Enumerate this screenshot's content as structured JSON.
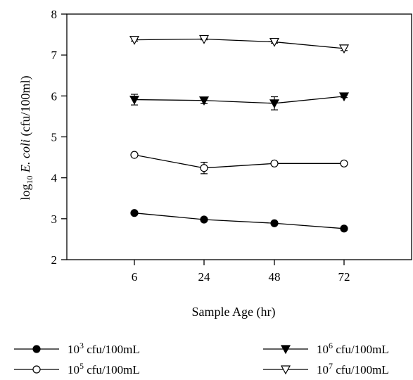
{
  "chart_data": {
    "type": "line",
    "title": "",
    "xlabel": "Sample Age (hr)",
    "ylabel": {
      "prefix": "log",
      "subscript": "10",
      "italic": "E. coli",
      "suffix": "(cfu/100ml)"
    },
    "categories": [
      "6",
      "24",
      "48",
      "72"
    ],
    "ylim": [
      2,
      8
    ],
    "yticks": [
      "2",
      "3",
      "4",
      "5",
      "6",
      "7",
      "8"
    ],
    "grid": false,
    "legend_position": "bottom",
    "series": [
      {
        "name": "10^3 cfu/100mL",
        "name_base": "10",
        "name_exp": "3",
        "name_unit": "cfu/100mL",
        "marker": "filled-circle",
        "values": [
          3.14,
          2.98,
          2.89,
          2.76
        ],
        "error": [
          0.0,
          0.0,
          0.0,
          0.0
        ]
      },
      {
        "name": "10^5 cfu/100mL",
        "name_base": "10",
        "name_exp": "5",
        "name_unit": "cfu/100mL",
        "marker": "open-circle",
        "values": [
          4.56,
          4.24,
          4.35,
          4.35
        ],
        "error": [
          0.0,
          0.14,
          0.0,
          0.0
        ]
      },
      {
        "name": "10^6 cfu/100mL",
        "name_base": "10",
        "name_exp": "6",
        "name_unit": "cfu/100mL",
        "marker": "filled-triangle-down",
        "values": [
          5.91,
          5.89,
          5.82,
          5.99
        ],
        "error": [
          0.13,
          0.08,
          0.16,
          0.03
        ]
      },
      {
        "name": "10^7 cfu/100mL",
        "name_base": "10",
        "name_exp": "7",
        "name_unit": "cfu/100mL",
        "marker": "open-triangle-down",
        "values": [
          7.37,
          7.39,
          7.32,
          7.16
        ],
        "error": [
          0.03,
          0.02,
          0.03,
          0.05
        ]
      }
    ]
  }
}
